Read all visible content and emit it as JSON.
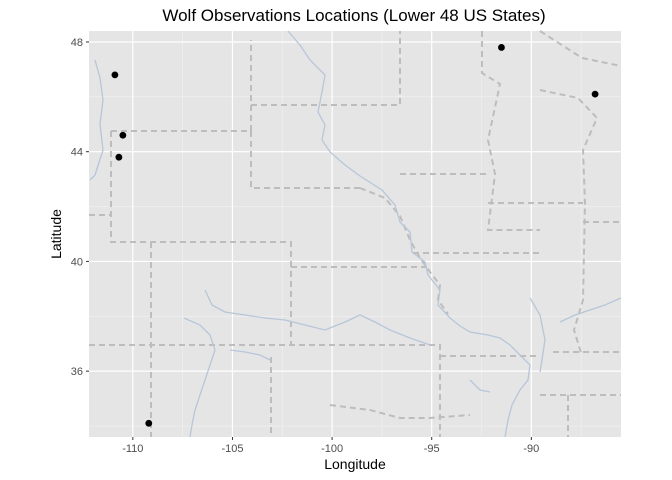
{
  "chart_data": {
    "type": "scatter",
    "title": "Wolf Observations Locations (Lower 48 US States)",
    "xlabel": "Longitude",
    "ylabel": "Latitude",
    "xlim": [
      -112.2,
      -85.5
    ],
    "ylim": [
      33.6,
      48.4
    ],
    "xticks": [
      -110,
      -105,
      -100,
      -95,
      -90
    ],
    "xtick_labels": [
      "-110",
      "-105",
      "-100",
      "-95",
      "-90"
    ],
    "yticks": [
      36,
      40,
      44,
      48
    ],
    "ytick_labels": [
      "36",
      "40",
      "44",
      "48"
    ],
    "grid": true,
    "legend": "none",
    "background": "#e5e5e5",
    "point_color": "#000000",
    "points": [
      {
        "x": -110.9,
        "y": 46.8
      },
      {
        "x": -110.5,
        "y": 44.6
      },
      {
        "x": -110.7,
        "y": 43.8
      },
      {
        "x": -109.2,
        "y": 34.1
      },
      {
        "x": -91.5,
        "y": 47.8
      },
      {
        "x": -86.8,
        "y": 46.1
      }
    ],
    "basemap": {
      "state_border_color": "#bdbdbd",
      "river_color": "#b7c6d9"
    }
  }
}
